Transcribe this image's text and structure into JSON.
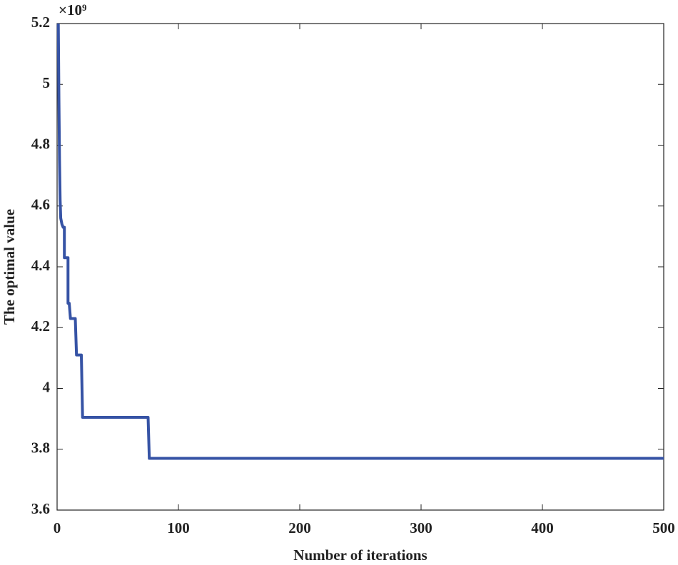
{
  "chart_data": {
    "type": "line",
    "x_label": "Number of iterations",
    "y_label": "The optimal value",
    "y_scale_label": "×10⁹",
    "x": [
      1,
      1.5,
      2,
      2.5,
      3,
      4,
      5,
      6,
      6,
      9,
      9,
      10,
      11,
      15,
      16,
      20,
      21,
      75,
      76,
      500
    ],
    "series": [
      {
        "name": "optimal value",
        "color": "#3653a5",
        "values": [
          5.2,
          4.95,
          4.75,
          4.62,
          4.56,
          4.54,
          4.53,
          4.53,
          4.43,
          4.43,
          4.28,
          4.28,
          4.23,
          4.23,
          4.11,
          4.11,
          3.905,
          3.905,
          3.77,
          3.77
        ]
      }
    ],
    "xlim": [
      0,
      500
    ],
    "xticks": [
      0,
      100,
      200,
      300,
      400,
      500
    ],
    "ylim": [
      3.6,
      5.2
    ],
    "yticks": [
      3.6,
      3.8,
      {
        "value": 4,
        "label": "4"
      },
      4.2,
      4.4,
      4.6,
      4.8,
      {
        "value": 5,
        "label": "5"
      },
      5.2
    ]
  }
}
